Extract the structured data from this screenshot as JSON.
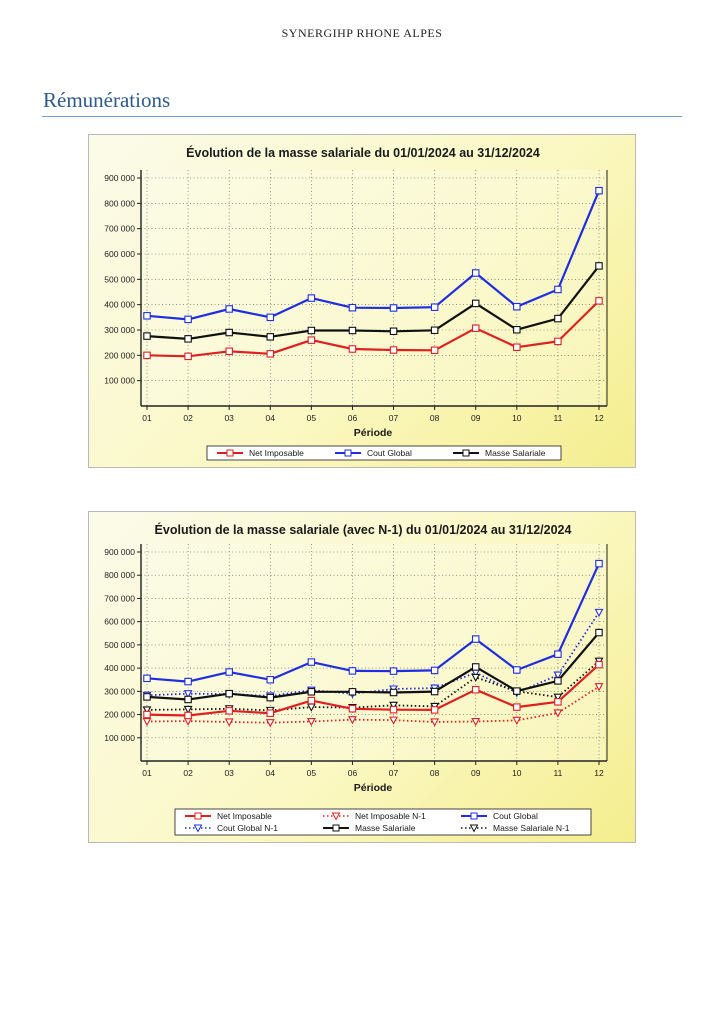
{
  "page": {
    "header": "SYNERGIHP RHONE ALPES",
    "section_title": "Rémunérations"
  },
  "chart_data": [
    {
      "type": "line",
      "title": "Évolution de la masse salariale du 01/01/2024 au 31/12/2024",
      "xlabel": "Période",
      "ylabel": "",
      "categories": [
        "01",
        "02",
        "03",
        "04",
        "05",
        "06",
        "07",
        "08",
        "09",
        "10",
        "11",
        "12"
      ],
      "ylim": [
        0,
        900000
      ],
      "yticks": [
        100000,
        200000,
        300000,
        400000,
        500000,
        600000,
        700000,
        800000,
        900000
      ],
      "ytick_labels": [
        "100 000",
        "200 000",
        "300 000",
        "400 000",
        "500 000",
        "600 000",
        "700 000",
        "800 000",
        "900 000"
      ],
      "grid": true,
      "legend_position": "bottom",
      "series": [
        {
          "name": "Net Imposable",
          "color": "#e02020",
          "dash": false,
          "marker": "square",
          "values": [
            200000,
            196000,
            216000,
            206000,
            260000,
            225000,
            221000,
            220000,
            307000,
            232000,
            255000,
            415000
          ]
        },
        {
          "name": "Cout Global",
          "color": "#1f2ee0",
          "dash": false,
          "marker": "square",
          "values": [
            356000,
            342000,
            383000,
            350000,
            426000,
            388000,
            387000,
            390000,
            525000,
            392000,
            460000,
            850000
          ]
        },
        {
          "name": "Masse Salariale",
          "color": "#111111",
          "dash": false,
          "marker": "square",
          "values": [
            276000,
            265000,
            290000,
            273000,
            298000,
            298000,
            295000,
            299000,
            405000,
            301000,
            345000,
            553000
          ]
        }
      ]
    },
    {
      "type": "line",
      "title": "Évolution de la masse salariale (avec N-1) du 01/01/2024 au 31/12/2024",
      "xlabel": "Période",
      "ylabel": "",
      "categories": [
        "01",
        "02",
        "03",
        "04",
        "05",
        "06",
        "07",
        "08",
        "09",
        "10",
        "11",
        "12"
      ],
      "ylim": [
        0,
        900000
      ],
      "yticks": [
        100000,
        200000,
        300000,
        400000,
        500000,
        600000,
        700000,
        800000,
        900000
      ],
      "ytick_labels": [
        "100 000",
        "200 000",
        "300 000",
        "400 000",
        "500 000",
        "600 000",
        "700 000",
        "800 000",
        "900 000"
      ],
      "grid": true,
      "legend_position": "bottom",
      "series": [
        {
          "name": "Net Imposable",
          "color": "#e02020",
          "dash": false,
          "marker": "square",
          "values": [
            200000,
            196000,
            216000,
            206000,
            260000,
            225000,
            221000,
            220000,
            307000,
            232000,
            255000,
            415000
          ]
        },
        {
          "name": "Net Imposable N-1",
          "color": "#e02020",
          "dash": true,
          "marker": "triangle",
          "values": [
            170000,
            172000,
            168000,
            165000,
            170000,
            178000,
            176000,
            168000,
            170000,
            175000,
            207000,
            320000
          ]
        },
        {
          "name": "Cout Global",
          "color": "#1f2ee0",
          "dash": false,
          "marker": "square",
          "values": [
            356000,
            342000,
            383000,
            350000,
            426000,
            388000,
            387000,
            390000,
            525000,
            392000,
            460000,
            850000
          ]
        },
        {
          "name": "Cout Global N-1",
          "color": "#1f2ee0",
          "dash": true,
          "marker": "triangle",
          "values": [
            283000,
            290000,
            288000,
            280000,
            305000,
            290000,
            310000,
            314000,
            380000,
            294000,
            370000,
            640000
          ]
        },
        {
          "name": "Masse Salariale",
          "color": "#111111",
          "dash": false,
          "marker": "square",
          "values": [
            276000,
            265000,
            290000,
            273000,
            298000,
            298000,
            295000,
            299000,
            405000,
            301000,
            345000,
            553000
          ]
        },
        {
          "name": "Masse Salariale N-1",
          "color": "#111111",
          "dash": true,
          "marker": "triangle",
          "values": [
            220000,
            222000,
            225000,
            218000,
            232000,
            230000,
            240000,
            235000,
            360000,
            300000,
            275000,
            430000
          ]
        }
      ]
    }
  ]
}
